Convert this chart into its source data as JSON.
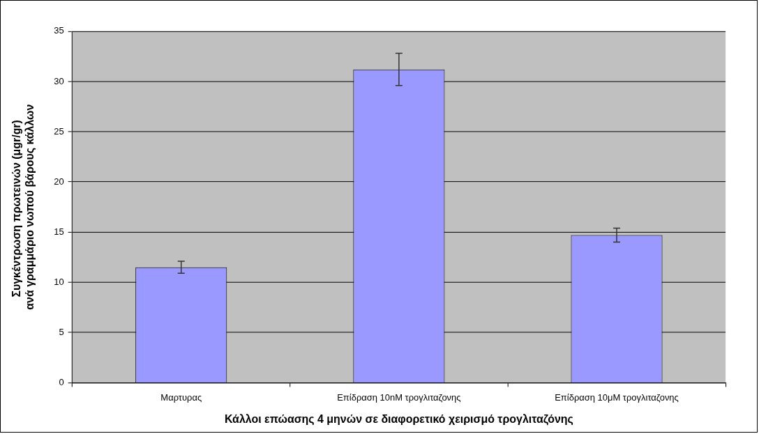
{
  "chart_data": {
    "type": "bar",
    "xlabel": "Κάλλοι επώασης 4 μηνών σε διαφορετικό χειρισμό τρογλιταζόνης",
    "ylabel": "Συγκέντρωση πρωτεινών (μgr/gr)  ανά γραμμάριο νωπού βάρους κάλλων",
    "categories": [
      "Μαρτυρας",
      "Επίδραση 10nM τρογλιταζονης",
      "Επίδραση 10μΜ τρογλιταζονης"
    ],
    "values": [
      11.5,
      31.2,
      14.7
    ],
    "errors": [
      0.6,
      1.6,
      0.7
    ],
    "color": "#9999ff",
    "ylim": [
      0,
      35
    ],
    "yticks": [
      0,
      5,
      10,
      15,
      20,
      25,
      30,
      35
    ],
    "grid": "y",
    "legend": false
  }
}
